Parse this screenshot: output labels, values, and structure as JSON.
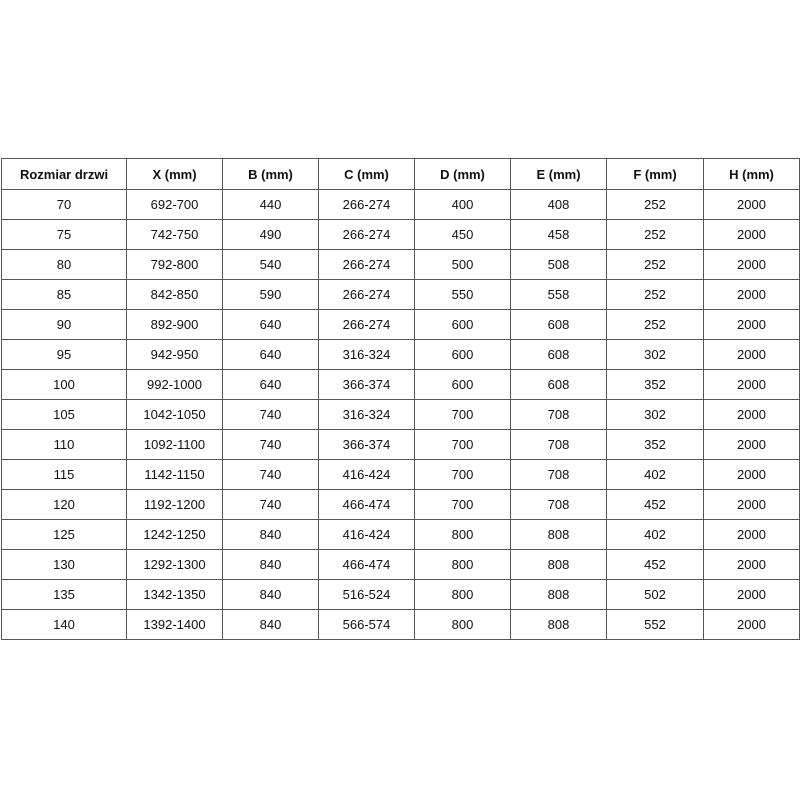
{
  "headers": [
    "Rozmiar drzwi",
    "X (mm)",
    "B (mm)",
    "C (mm)",
    "D (mm)",
    "E (mm)",
    "F (mm)",
    "H (mm)"
  ],
  "rows": [
    [
      "70",
      "692-700",
      "440",
      "266-274",
      "400",
      "408",
      "252",
      "2000"
    ],
    [
      "75",
      "742-750",
      "490",
      "266-274",
      "450",
      "458",
      "252",
      "2000"
    ],
    [
      "80",
      "792-800",
      "540",
      "266-274",
      "500",
      "508",
      "252",
      "2000"
    ],
    [
      "85",
      "842-850",
      "590",
      "266-274",
      "550",
      "558",
      "252",
      "2000"
    ],
    [
      "90",
      "892-900",
      "640",
      "266-274",
      "600",
      "608",
      "252",
      "2000"
    ],
    [
      "95",
      "942-950",
      "640",
      "316-324",
      "600",
      "608",
      "302",
      "2000"
    ],
    [
      "100",
      "992-1000",
      "640",
      "366-374",
      "600",
      "608",
      "352",
      "2000"
    ],
    [
      "105",
      "1042-1050",
      "740",
      "316-324",
      "700",
      "708",
      "302",
      "2000"
    ],
    [
      "110",
      "1092-1100",
      "740",
      "366-374",
      "700",
      "708",
      "352",
      "2000"
    ],
    [
      "115",
      "1142-1150",
      "740",
      "416-424",
      "700",
      "708",
      "402",
      "2000"
    ],
    [
      "120",
      "1192-1200",
      "740",
      "466-474",
      "700",
      "708",
      "452",
      "2000"
    ],
    [
      "125",
      "1242-1250",
      "840",
      "416-424",
      "800",
      "808",
      "402",
      "2000"
    ],
    [
      "130",
      "1292-1300",
      "840",
      "466-474",
      "800",
      "808",
      "452",
      "2000"
    ],
    [
      "135",
      "1342-1350",
      "840",
      "516-524",
      "800",
      "808",
      "502",
      "2000"
    ],
    [
      "140",
      "1392-1400",
      "840",
      "566-574",
      "800",
      "808",
      "552",
      "2000"
    ]
  ]
}
